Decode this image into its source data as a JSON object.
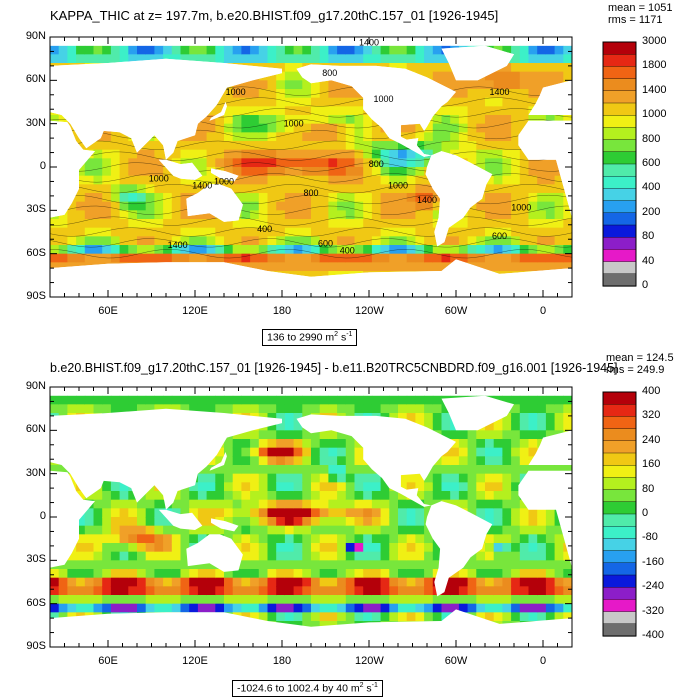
{
  "top_panel": {
    "title": "KAPPA_THIC at z= 197.7m, b.e20.BHIST.f09_g17.20thC.157_01 [1926-1945]",
    "mean": "mean = 1051",
    "rms": "rms = 1171",
    "range_prefix": "136 to 2990 m",
    "range_sup1": "2",
    "range_mid": " s",
    "range_sup2": "-1",
    "colorbar_labels": [
      "3000",
      "1800",
      "1400",
      "1000",
      "800",
      "600",
      "400",
      "200",
      "80",
      "40",
      "0"
    ],
    "contour_labels": [
      "1400",
      "800",
      "1000",
      "1000",
      "1400",
      "1000",
      "800",
      "1000",
      "1400",
      "1000",
      "1000",
      "800",
      "1400",
      "1000",
      "400",
      "600",
      "600",
      "400",
      "1400"
    ]
  },
  "bottom_panel": {
    "title": "b.e20.BHIST.f09_g17.20thC.157_01 [1926-1945] - b.e11.B20TRC5CNBDRD.f09_g16.001 [1926-1945]",
    "mean": "mean = 124.5",
    "rms": "rms = 249.9",
    "range_prefix": "-1024.6 to 1002.4 by 40 m",
    "range_sup1": "2",
    "range_mid": " s",
    "range_sup2": "-1",
    "colorbar_labels": [
      "400",
      "320",
      "240",
      "160",
      "80",
      "0",
      "-80",
      "-160",
      "-240",
      "-320",
      "-400"
    ]
  },
  "axes": {
    "lat_labels": [
      "90N",
      "60N",
      "30N",
      "0",
      "30S",
      "60S",
      "90S"
    ],
    "lon_labels": [
      "60E",
      "120E",
      "180",
      "120W",
      "60W",
      "0"
    ]
  },
  "chart_data": [
    {
      "type": "heatmap",
      "title": "KAPPA_THIC at z= 197.7m, b.e20.BHIST.f09_g17.20thC.157_01 [1926-1945]",
      "xlabel": "",
      "ylabel": "",
      "x_ticks": [
        "60E",
        "120E",
        "180",
        "120W",
        "60W",
        "0"
      ],
      "y_ticks": [
        "90N",
        "60N",
        "30N",
        "0",
        "30S",
        "60S",
        "90S"
      ],
      "xlim": [
        20,
        380
      ],
      "ylim": [
        -90,
        90
      ],
      "colorbar_levels": [
        0,
        40,
        80,
        200,
        400,
        600,
        800,
        1000,
        1400,
        1800,
        3000
      ],
      "colors": [
        "#6e6e6e",
        "#c8c8c8",
        "#e619c8",
        "#8c1ec8",
        "#0a19dc",
        "#1466e6",
        "#28a0f0",
        "#46d2e6",
        "#3cf0c8",
        "#50ebaa",
        "#2ecc34",
        "#78e63c",
        "#b4f01e",
        "#f0f014",
        "#f0c814",
        "#f0a028",
        "#eb8c1e",
        "#f06414",
        "#e62814",
        "#b4000a"
      ],
      "value_range": [
        136,
        2990
      ],
      "mean": 1051,
      "rms": 1171
    },
    {
      "type": "heatmap",
      "title": "b.e20.BHIST.f09_g17.20thC.157_01 [1926-1945] - b.e11.B20TRC5CNBDRD.f09_g16.001 [1926-1945]",
      "xlabel": "",
      "ylabel": "",
      "x_ticks": [
        "60E",
        "120E",
        "180",
        "120W",
        "60W",
        "0"
      ],
      "y_ticks": [
        "90N",
        "60N",
        "30N",
        "0",
        "30S",
        "60S",
        "90S"
      ],
      "xlim": [
        20,
        380
      ],
      "ylim": [
        -90,
        90
      ],
      "colorbar_levels": [
        -400,
        -320,
        -240,
        -160,
        -80,
        0,
        80,
        160,
        240,
        320,
        400
      ],
      "colors": [
        "#6e6e6e",
        "#c8c8c8",
        "#e619c8",
        "#8c1ec8",
        "#0a19dc",
        "#1466e6",
        "#28a0f0",
        "#46d2e6",
        "#3cf0c8",
        "#50ebaa",
        "#2ecc34",
        "#78e63c",
        "#b4f01e",
        "#f0f014",
        "#f0c814",
        "#f0a028",
        "#eb8c1e",
        "#f06414",
        "#e62814",
        "#b4000a"
      ],
      "value_range": [
        -1024.6,
        1002.4
      ],
      "contour_interval": 40,
      "mean": 124.5,
      "rms": 249.9
    }
  ]
}
